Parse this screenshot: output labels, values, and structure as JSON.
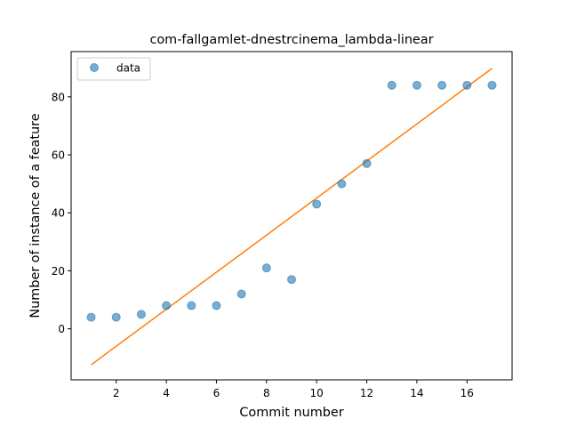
{
  "chart_data": {
    "type": "scatter",
    "title": "com-fallgamlet-dnestrcinema_lambda-linear",
    "xlabel": "Commit number",
    "ylabel": "Number of instance of a feature",
    "xlim": [
      0.2,
      17.8
    ],
    "ylim": [
      -17.6,
      95.6
    ],
    "xticks": [
      2,
      4,
      6,
      8,
      10,
      12,
      14,
      16
    ],
    "yticks": [
      0,
      20,
      40,
      60,
      80
    ],
    "legend": {
      "position": "upper-left",
      "entries": [
        "data"
      ]
    },
    "grid": false,
    "series": [
      {
        "name": "data",
        "kind": "scatter",
        "color": "#1f77b4",
        "x": [
          1,
          2,
          3,
          4,
          5,
          6,
          7,
          8,
          9,
          10,
          11,
          12,
          13,
          14,
          15,
          16,
          17
        ],
        "y": [
          4,
          4,
          5,
          8,
          8,
          8,
          12,
          21,
          17,
          43,
          50,
          57,
          84,
          84,
          84,
          84,
          84
        ]
      },
      {
        "kind": "line",
        "color": "#ff7f0e",
        "x": [
          1,
          17
        ],
        "y": [
          -12.4,
          89.8
        ]
      }
    ]
  }
}
